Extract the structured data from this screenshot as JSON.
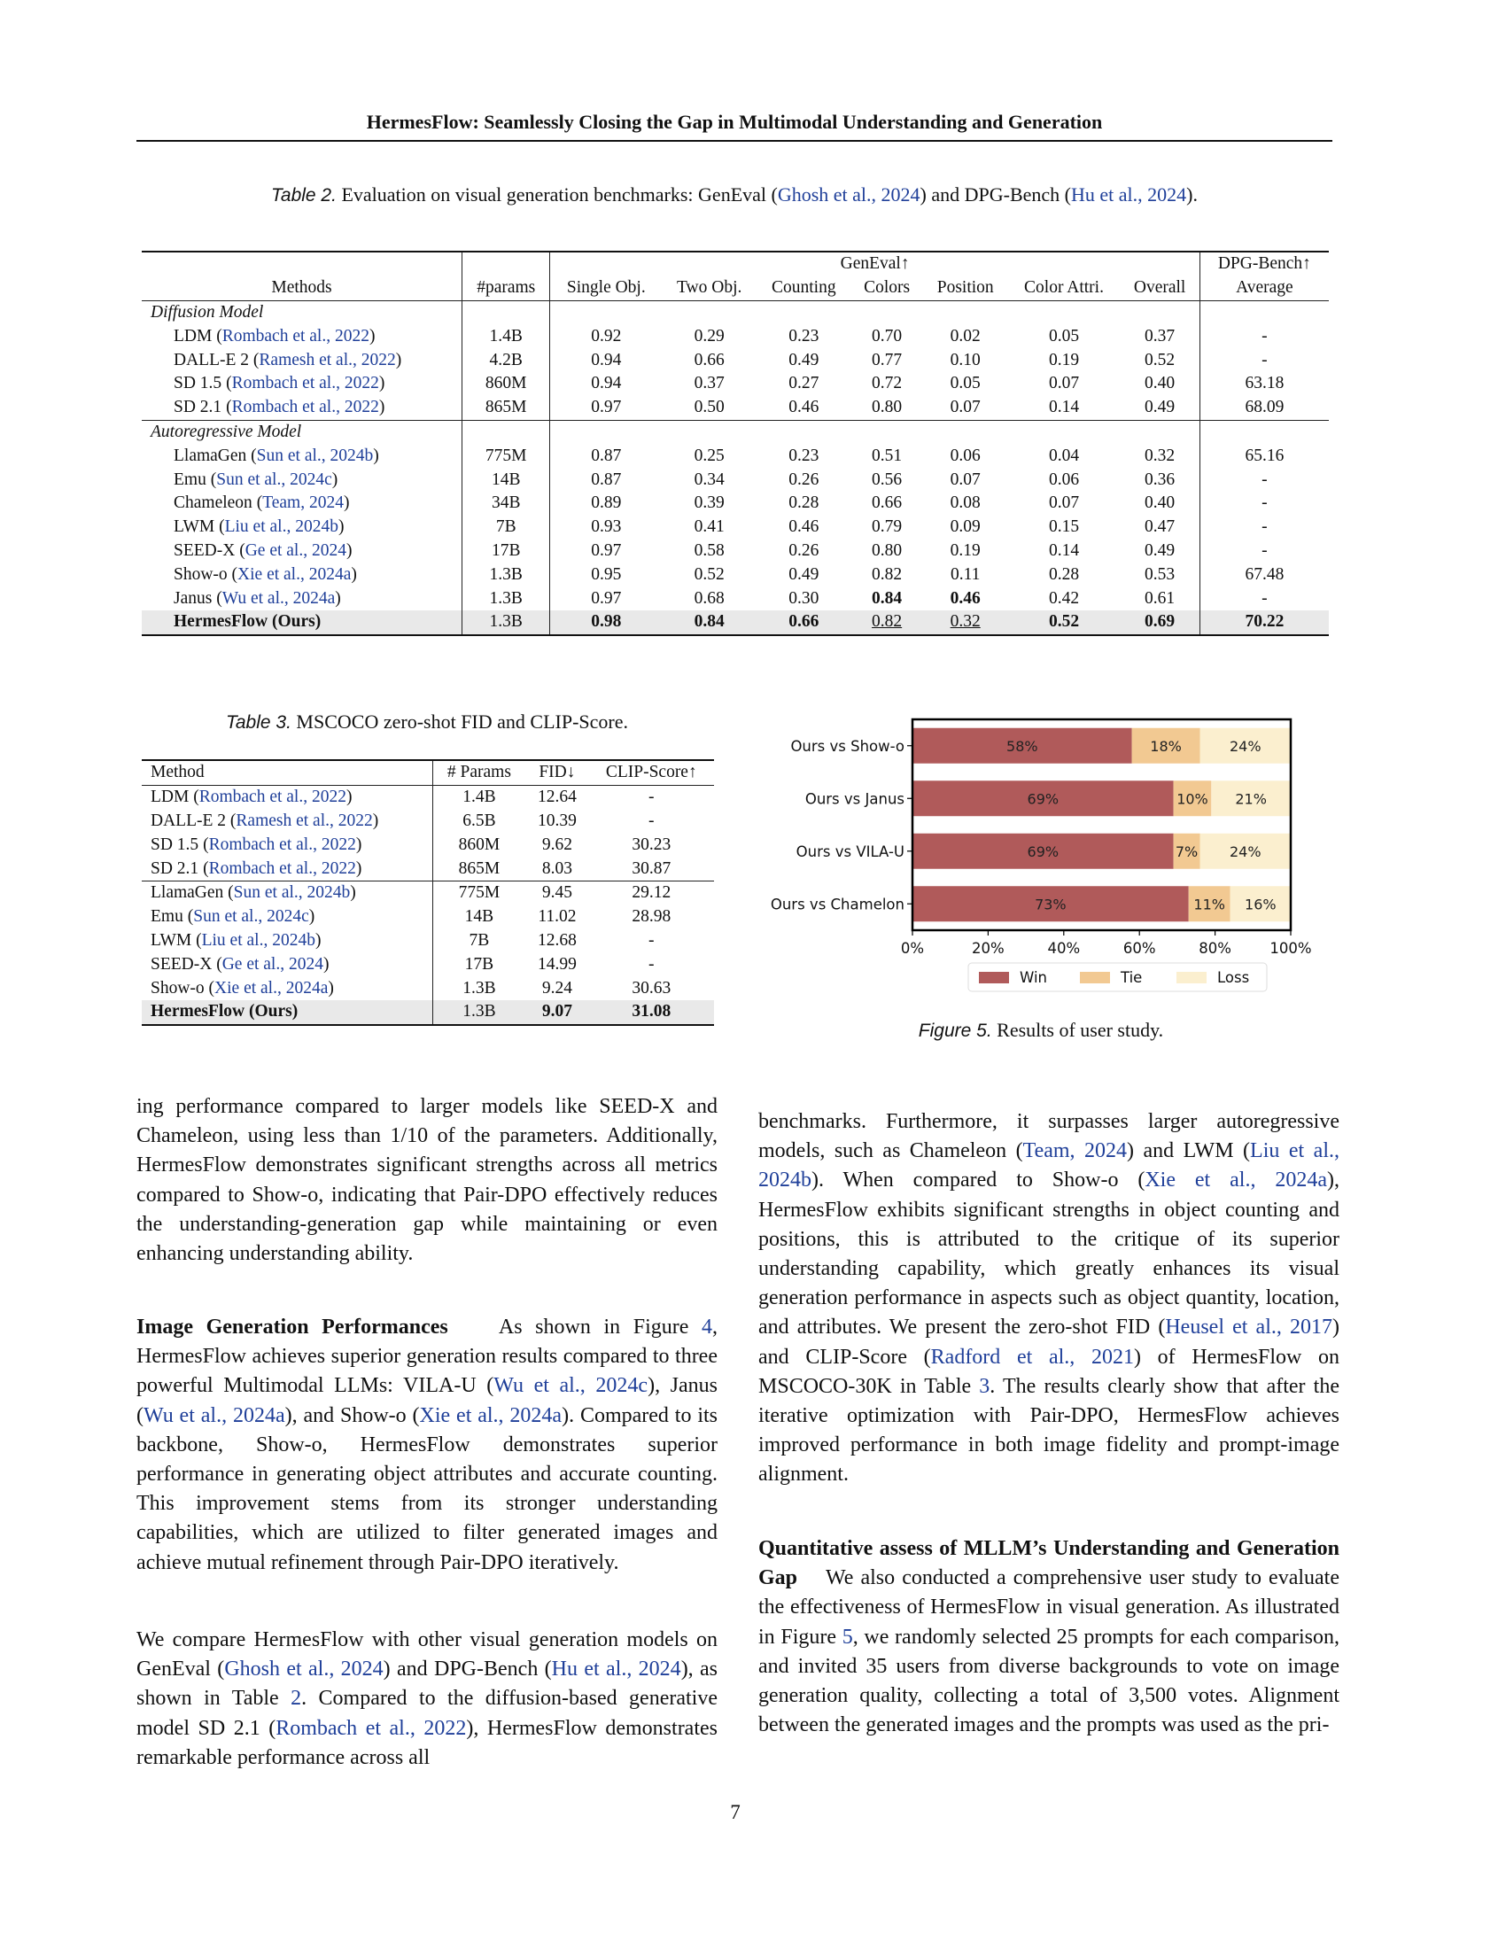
{
  "running_header": "HermesFlow: Seamlessly Closing the Gap in Multimodal Understanding and Generation",
  "table2": {
    "caption_label": "Table 2.",
    "caption_text": " Evaluation on visual generation benchmarks: GenEval (",
    "caption_cite1": "Ghosh et al., 2024",
    "caption_mid": ") and DPG-Bench (",
    "caption_cite2": "Hu et al., 2024",
    "caption_end": ").",
    "group_geneval": "GenEval↑",
    "group_dpg": "DPG-Bench↑",
    "headers": [
      "Methods",
      "#params",
      "Single Obj.",
      "Two Obj.",
      "Counting",
      "Colors",
      "Position",
      "Color Attri.",
      "Overall",
      "Average"
    ],
    "section_diffusion": "Diffusion Model",
    "section_autoregressive": "Autoregressive Model",
    "diffusion_rows": [
      {
        "name": "LDM",
        "cite": "Rombach et al., 2022",
        "vals": [
          "1.4B",
          "0.92",
          "0.29",
          "0.23",
          "0.70",
          "0.02",
          "0.05",
          "0.37",
          "-"
        ]
      },
      {
        "name": "DALL-E 2",
        "cite": "Ramesh et al., 2022",
        "vals": [
          "4.2B",
          "0.94",
          "0.66",
          "0.49",
          "0.77",
          "0.10",
          "0.19",
          "0.52",
          "-"
        ]
      },
      {
        "name": "SD 1.5",
        "cite": "Rombach et al., 2022",
        "vals": [
          "860M",
          "0.94",
          "0.37",
          "0.27",
          "0.72",
          "0.05",
          "0.07",
          "0.40",
          "63.18"
        ]
      },
      {
        "name": "SD 2.1",
        "cite": "Rombach et al., 2022",
        "vals": [
          "865M",
          "0.97",
          "0.50",
          "0.46",
          "0.80",
          "0.07",
          "0.14",
          "0.49",
          "68.09"
        ]
      }
    ],
    "autoregressive_rows": [
      {
        "name": "LlamaGen",
        "cite": "Sun et al., 2024b",
        "vals": [
          "775M",
          "0.87",
          "0.25",
          "0.23",
          "0.51",
          "0.06",
          "0.04",
          "0.32",
          "65.16"
        ]
      },
      {
        "name": "Emu",
        "cite": "Sun et al., 2024c",
        "vals": [
          "14B",
          "0.87",
          "0.34",
          "0.26",
          "0.56",
          "0.07",
          "0.06",
          "0.36",
          "-"
        ]
      },
      {
        "name": "Chameleon",
        "cite": "Team, 2024",
        "vals": [
          "34B",
          "0.89",
          "0.39",
          "0.28",
          "0.66",
          "0.08",
          "0.07",
          "0.40",
          "-"
        ]
      },
      {
        "name": "LWM",
        "cite": "Liu et al., 2024b",
        "vals": [
          "7B",
          "0.93",
          "0.41",
          "0.46",
          "0.79",
          "0.09",
          "0.15",
          "0.47",
          "-"
        ]
      },
      {
        "name": "SEED-X",
        "cite": "Ge et al., 2024",
        "vals": [
          "17B",
          "0.97",
          "0.58",
          "0.26",
          "0.80",
          "0.19",
          "0.14",
          "0.49",
          "-"
        ]
      },
      {
        "name": "Show-o",
        "cite": "Xie et al., 2024a",
        "vals": [
          "1.3B",
          "0.95",
          "0.52",
          "0.49",
          "0.82",
          "0.11",
          "0.28",
          "0.53",
          "67.48"
        ]
      },
      {
        "name": "Janus",
        "cite": "Wu et al., 2024a",
        "vals": [
          "1.3B",
          "0.97",
          "0.68",
          "0.30",
          "0.84",
          "0.46",
          "0.42",
          "0.61",
          "-"
        ]
      }
    ],
    "ours_row": {
      "name": "HermesFlow (Ours)",
      "vals": [
        "1.3B",
        "0.98",
        "0.84",
        "0.66",
        "0.82",
        "0.32",
        "0.52",
        "0.69",
        "70.22"
      ]
    }
  },
  "table3": {
    "caption_label": "Table 3.",
    "caption_text": " MSCOCO zero-shot FID and CLIP-Score.",
    "headers": [
      "Method",
      "# Params",
      "FID↓",
      "CLIP-Score↑"
    ],
    "diffusion_rows": [
      {
        "name": "LDM",
        "cite": "Rombach et al., 2022",
        "vals": [
          "1.4B",
          "12.64",
          "-"
        ]
      },
      {
        "name": "DALL-E 2",
        "cite": "Ramesh et al., 2022",
        "vals": [
          "6.5B",
          "10.39",
          "-"
        ]
      },
      {
        "name": "SD 1.5",
        "cite": "Rombach et al., 2022",
        "vals": [
          "860M",
          "9.62",
          "30.23"
        ]
      },
      {
        "name": "SD 2.1",
        "cite": "Rombach et al., 2022",
        "vals": [
          "865M",
          "8.03",
          "30.87"
        ]
      }
    ],
    "autoregressive_rows": [
      {
        "name": "LlamaGen",
        "cite": "Sun et al., 2024b",
        "vals": [
          "775M",
          "9.45",
          "29.12"
        ]
      },
      {
        "name": "Emu",
        "cite": "Sun et al., 2024c",
        "vals": [
          "14B",
          "11.02",
          "28.98"
        ]
      },
      {
        "name": "LWM",
        "cite": "Liu et al., 2024b",
        "vals": [
          "7B",
          "12.68",
          "-"
        ]
      },
      {
        "name": "SEED-X",
        "cite": "Ge et al., 2024",
        "vals": [
          "17B",
          "14.99",
          "-"
        ]
      },
      {
        "name": "Show-o",
        "cite": "Xie et al., 2024a",
        "vals": [
          "1.3B",
          "9.24",
          "30.63"
        ]
      }
    ],
    "ours_row": {
      "name": "HermesFlow (Ours)",
      "vals": [
        "1.3B",
        "9.07",
        "31.08"
      ]
    }
  },
  "figure5": {
    "caption_label": "Figure 5.",
    "caption_text": " Results of user study."
  },
  "chart_data": {
    "type": "bar",
    "orientation": "horizontal",
    "stacked": true,
    "categories": [
      "Ours vs Show-o",
      "Ours vs Janus",
      "Ours vs VILA-U",
      "Ours vs Chamelon"
    ],
    "series": [
      {
        "name": "Win",
        "values": [
          58,
          69,
          69,
          73
        ],
        "color": "#b05a5a"
      },
      {
        "name": "Tie",
        "values": [
          18,
          10,
          7,
          11
        ],
        "color": "#f2c992"
      },
      {
        "name": "Loss",
        "values": [
          24,
          21,
          24,
          16
        ],
        "color": "#fbefcf"
      }
    ],
    "value_suffix": "%",
    "xlim": [
      0,
      100
    ],
    "xticks": [
      "0%",
      "20%",
      "40%",
      "60%",
      "80%",
      "100%"
    ],
    "legend_position": "bottom",
    "grid": false
  },
  "left_col": {
    "p1": [
      {
        "t": "ing performance compared to larger models like SEED-X and Chameleon, using less than 1/10 of the parameters. Additionally, HermesFlow demonstrates significant strengths across all metrics compared to Show-o, indicating that Pair-DPO effectively reduces the understanding-generation gap while maintaining or even enhancing understanding ability."
      }
    ],
    "p2_heading": "Image Generation Performances",
    "p2": [
      {
        "t": "As shown in Figure "
      },
      {
        "c": "4"
      },
      {
        "t": ", HermesFlow achieves superior generation results compared to three powerful Multimodal LLMs: VILA-U ("
      },
      {
        "c": "Wu et al., 2024c"
      },
      {
        "t": "), Janus ("
      },
      {
        "c": "Wu et al., 2024a"
      },
      {
        "t": "), and Show-o ("
      },
      {
        "c": "Xie et al., 2024a"
      },
      {
        "t": "). Compared to its backbone, Show-o, HermesFlow demonstrates superior performance in generating object attributes and accurate counting. This improvement stems from its stronger understanding capabilities, which are utilized to filter generated images and achieve mutual refinement through Pair-DPO iteratively."
      }
    ],
    "p3": [
      {
        "t": "We compare HermesFlow with other visual generation models on GenEval ("
      },
      {
        "c": "Ghosh et al., 2024"
      },
      {
        "t": ") and DPG-Bench ("
      },
      {
        "c": "Hu et al., 2024"
      },
      {
        "t": "), as shown in Table "
      },
      {
        "c": "2"
      },
      {
        "t": ". Compared to the diffusion-based generative model SD 2.1 ("
      },
      {
        "c": "Rombach et al., 2022"
      },
      {
        "t": "), HermesFlow demonstrates remarkable performance across all"
      }
    ]
  },
  "right_col": {
    "p1": [
      {
        "t": "benchmarks. Furthermore, it surpasses larger autoregressive models, such as Chameleon ("
      },
      {
        "c": "Team, 2024"
      },
      {
        "t": ") and LWM ("
      },
      {
        "c": "Liu et al., 2024b"
      },
      {
        "t": "). When compared to Show-o ("
      },
      {
        "c": "Xie et al., 2024a"
      },
      {
        "t": "), HermesFlow exhibits significant strengths in object counting and positions, this is attributed to the critique of its superior understanding capability, which greatly enhances its visual generation performance in aspects such as object quantity, location, and attributes. We present the zero-shot FID ("
      },
      {
        "c": "Heusel et al., 2017"
      },
      {
        "t": ") and CLIP-Score ("
      },
      {
        "c": "Radford et al., 2021"
      },
      {
        "t": ") of HermesFlow on MSCOCO-30K in Table "
      },
      {
        "c": "3"
      },
      {
        "t": ". The results clearly show that after the iterative optimization with Pair-DPO, HermesFlow achieves improved performance in both image fidelity and prompt-image alignment."
      }
    ],
    "p2_heading": "Quantitative assess of MLLM’s Understanding and Generation Gap",
    "p2": [
      {
        "t": "We also conducted a comprehensive user study to evaluate the effectiveness of HermesFlow in visual generation. As illustrated in Figure "
      },
      {
        "c": "5"
      },
      {
        "t": ", we randomly selected 25 prompts for each comparison, and invited 35 users from diverse backgrounds to vote on image generation quality, collecting a total of 3,500 votes. Alignment between the generated images and the prompts was used as the pri-"
      }
    ]
  },
  "page_number": "7"
}
